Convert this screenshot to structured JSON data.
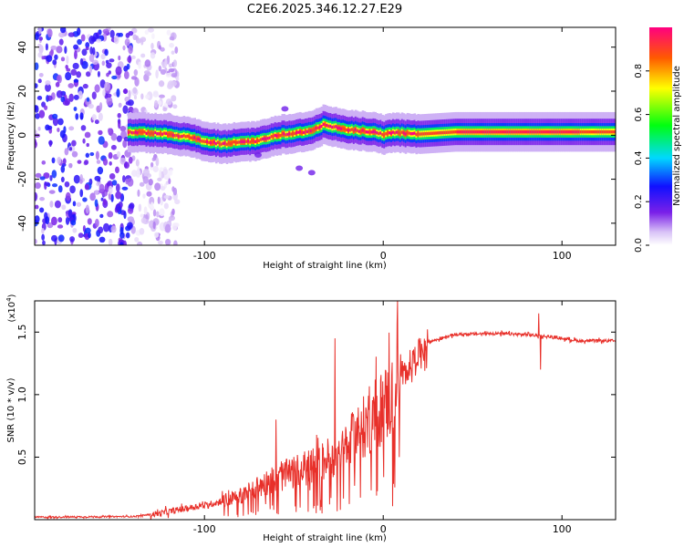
{
  "figure": {
    "title": "C2E6.2025.346.12.27.E29"
  },
  "chart_data": [
    {
      "type": "heatmap",
      "title": "",
      "xlabel": "Height of straight line (km)",
      "ylabel": "Frequency (Hz)",
      "xlim": [
        -195,
        130
      ],
      "ylim": [
        -50,
        49
      ],
      "x_ticks": [
        -100,
        0,
        100
      ],
      "y_ticks": [
        -40,
        -20,
        0,
        20,
        40
      ],
      "x_tick_labels": [
        "-100",
        "0",
        "100"
      ],
      "y_tick_labels": [
        "-40",
        "-20",
        "0",
        "20",
        "40"
      ],
      "colorbar": {
        "label": "Normalized spectral amplitude",
        "range": [
          0,
          1
        ],
        "ticks": [
          0.0,
          0.2,
          0.4,
          0.6,
          0.8
        ],
        "tick_labels": [
          "0.0",
          "0.2",
          "0.4",
          "0.6",
          "0.8"
        ]
      },
      "noise_region": {
        "x_range": [
          -195,
          -115
        ],
        "y_range": [
          -50,
          49
        ],
        "amplitude": 0.2
      },
      "ridge_line": [
        {
          "x": -143,
          "y": 1.5
        },
        {
          "x": -120,
          "y": 0.5
        },
        {
          "x": -108,
          "y": -1
        },
        {
          "x": -100,
          "y": -3
        },
        {
          "x": -90,
          "y": -4
        },
        {
          "x": -80,
          "y": -3
        },
        {
          "x": -70,
          "y": -2.5
        },
        {
          "x": -60,
          "y": 0
        },
        {
          "x": -50,
          "y": 1
        },
        {
          "x": -40,
          "y": 2
        },
        {
          "x": -33,
          "y": 5
        },
        {
          "x": -25,
          "y": 3
        },
        {
          "x": -15,
          "y": 2
        },
        {
          "x": -5,
          "y": 1.5
        },
        {
          "x": 0,
          "y": 0
        },
        {
          "x": 5,
          "y": 1.5
        },
        {
          "x": 10,
          "y": 1
        },
        {
          "x": 20,
          "y": 0.5
        },
        {
          "x": 40,
          "y": 1.5
        },
        {
          "x": 80,
          "y": 1.5
        },
        {
          "x": 130,
          "y": 1.5
        }
      ],
      "stray_blobs": [
        {
          "x": -70,
          "y": -9
        },
        {
          "x": -47,
          "y": -15
        },
        {
          "x": -40,
          "y": -17
        },
        {
          "x": -55,
          "y": 12
        }
      ]
    },
    {
      "type": "line",
      "title": "",
      "xlabel": "Height of straight line (km)",
      "ylabel": "SNR (10 * v/v)",
      "y_multiplier": "(x10",
      "y_multiplier_exp": "4",
      "y_multiplier_close": ")",
      "xlim": [
        -195,
        130
      ],
      "ylim": [
        0,
        17500
      ],
      "x_ticks": [
        -100,
        0,
        100
      ],
      "y_ticks": [
        5000,
        10000,
        15000
      ],
      "x_tick_labels": [
        "-100",
        "0",
        "100"
      ],
      "y_tick_labels": [
        "0.5",
        "1.0",
        "1.5"
      ],
      "series": [
        {
          "name": "SNR",
          "color": "#e8302a",
          "trend": [
            {
              "x": -195,
              "y": 200
            },
            {
              "x": -140,
              "y": 250
            },
            {
              "x": -125,
              "y": 500
            },
            {
              "x": -110,
              "y": 900
            },
            {
              "x": -95,
              "y": 1300
            },
            {
              "x": -80,
              "y": 1900
            },
            {
              "x": -65,
              "y": 3000
            },
            {
              "x": -50,
              "y": 3800
            },
            {
              "x": -35,
              "y": 4500
            },
            {
              "x": -20,
              "y": 6000
            },
            {
              "x": -10,
              "y": 7500
            },
            {
              "x": 0,
              "y": 9000
            },
            {
              "x": 8,
              "y": 10500
            },
            {
              "x": 15,
              "y": 12500
            },
            {
              "x": 25,
              "y": 14200
            },
            {
              "x": 40,
              "y": 14800
            },
            {
              "x": 60,
              "y": 14900
            },
            {
              "x": 80,
              "y": 14800
            },
            {
              "x": 95,
              "y": 14600
            },
            {
              "x": 110,
              "y": 14300
            },
            {
              "x": 130,
              "y": 14300
            }
          ],
          "spikes": [
            {
              "x": 8,
              "y": 17500
            },
            {
              "x": 9,
              "y": 5000
            },
            {
              "x": -27,
              "y": 14500
            },
            {
              "x": -60,
              "y": 8000
            },
            {
              "x": 87,
              "y": 16500
            },
            {
              "x": 88,
              "y": 12000
            }
          ]
        }
      ]
    }
  ]
}
